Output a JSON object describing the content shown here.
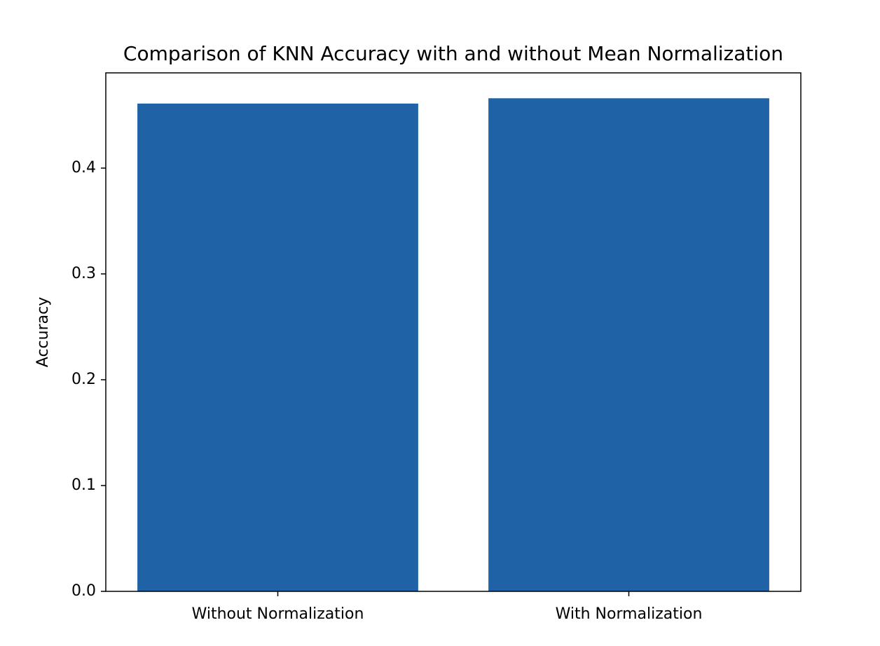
{
  "chart_data": {
    "type": "bar",
    "title": "Comparison of KNN Accuracy with and without Mean Normalization",
    "y_label": "Accuracy",
    "categories": [
      "Without Normalization",
      "With Normalization"
    ],
    "values": [
      0.461,
      0.466
    ],
    "color": "#1f62a5",
    "ylim": [
      0,
      0.49
    ],
    "yticks": [
      {
        "value": 0,
        "label": "0.0"
      },
      0.1,
      0.2,
      0.3,
      0.4
    ],
    "grid": false
  }
}
